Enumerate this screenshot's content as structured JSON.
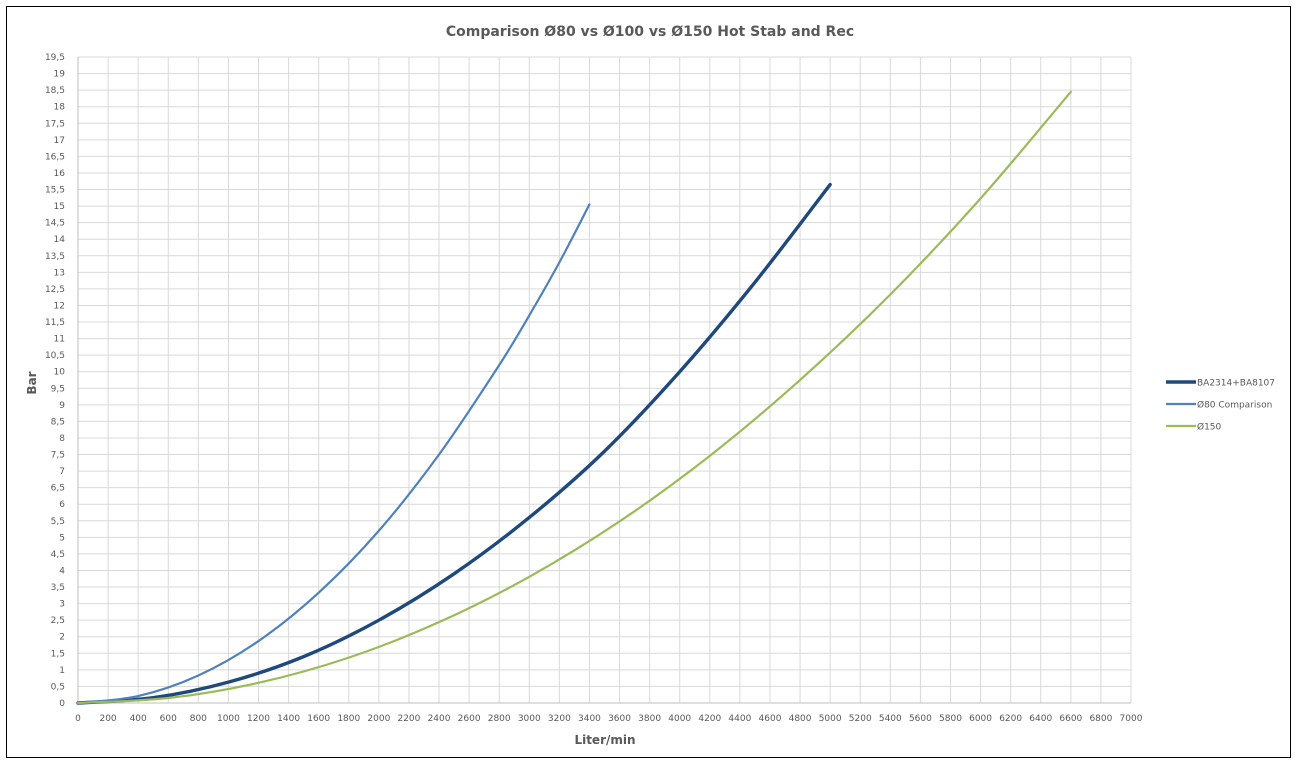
{
  "chart_data": {
    "type": "line",
    "title": "Comparison Ø80 vs Ø100  vs Ø150 Hot Stab and Rec",
    "xlabel": "Liter/min",
    "ylabel": "Bar",
    "xlim": [
      0,
      7000
    ],
    "ylim": [
      0,
      19.5
    ],
    "xticks": [
      "0",
      "200",
      "400",
      "600",
      "800",
      "1000",
      "1200",
      "1400",
      "1600",
      "1800",
      "2000",
      "2200",
      "2400",
      "2600",
      "2800",
      "3000",
      "3200",
      "3400",
      "3600",
      "3800",
      "4000",
      "4200",
      "4400",
      "4600",
      "4800",
      "5000",
      "5200",
      "5400",
      "5600",
      "5800",
      "6000",
      "6200",
      "6400",
      "6600",
      "6800",
      "7000"
    ],
    "yticks": [
      "0",
      "0,5",
      "1",
      "1,5",
      "2",
      "2,5",
      "3",
      "3,5",
      "4",
      "4,5",
      "5",
      "5,5",
      "6",
      "6,5",
      "7",
      "7,5",
      "8",
      "8,5",
      "9",
      "9,5",
      "10",
      "10,5",
      "11",
      "11,5",
      "12",
      "12,5",
      "13",
      "13,5",
      "14",
      "14,5",
      "15",
      "15,5",
      "16",
      "16,5",
      "17",
      "17,5",
      "18",
      "18,5",
      "19",
      "19,5"
    ],
    "grid": true,
    "legend_position": "right",
    "series": [
      {
        "name": "BA2314+BA8107",
        "color": "#1f497d",
        "line_width": "thick",
        "x": [
          0,
          500,
          1000,
          1500,
          2000,
          2500,
          3000,
          3500,
          4000,
          4500,
          5000
        ],
        "y": [
          0,
          0.16,
          0.63,
          1.4,
          2.5,
          3.9,
          5.6,
          7.6,
          10.0,
          12.7,
          15.65
        ]
      },
      {
        "name": "Ø80 Comparison",
        "color": "#4f81bd",
        "line_width": "thin",
        "x": [
          0,
          400,
          800,
          1200,
          1600,
          2000,
          2400,
          2800,
          3000,
          3200,
          3400
        ],
        "y": [
          0,
          0.21,
          0.83,
          1.87,
          3.33,
          5.2,
          7.5,
          10.2,
          11.7,
          13.3,
          15.05
        ]
      },
      {
        "name": "Ø150",
        "color": "#9bbb59",
        "line_width": "thin",
        "x": [
          0,
          600,
          1200,
          1800,
          2400,
          3000,
          3600,
          4200,
          4800,
          5400,
          6000,
          6600
        ],
        "y": [
          0,
          0.15,
          0.61,
          1.37,
          2.44,
          3.81,
          5.48,
          7.46,
          9.75,
          12.33,
          15.23,
          18.45
        ]
      }
    ]
  }
}
